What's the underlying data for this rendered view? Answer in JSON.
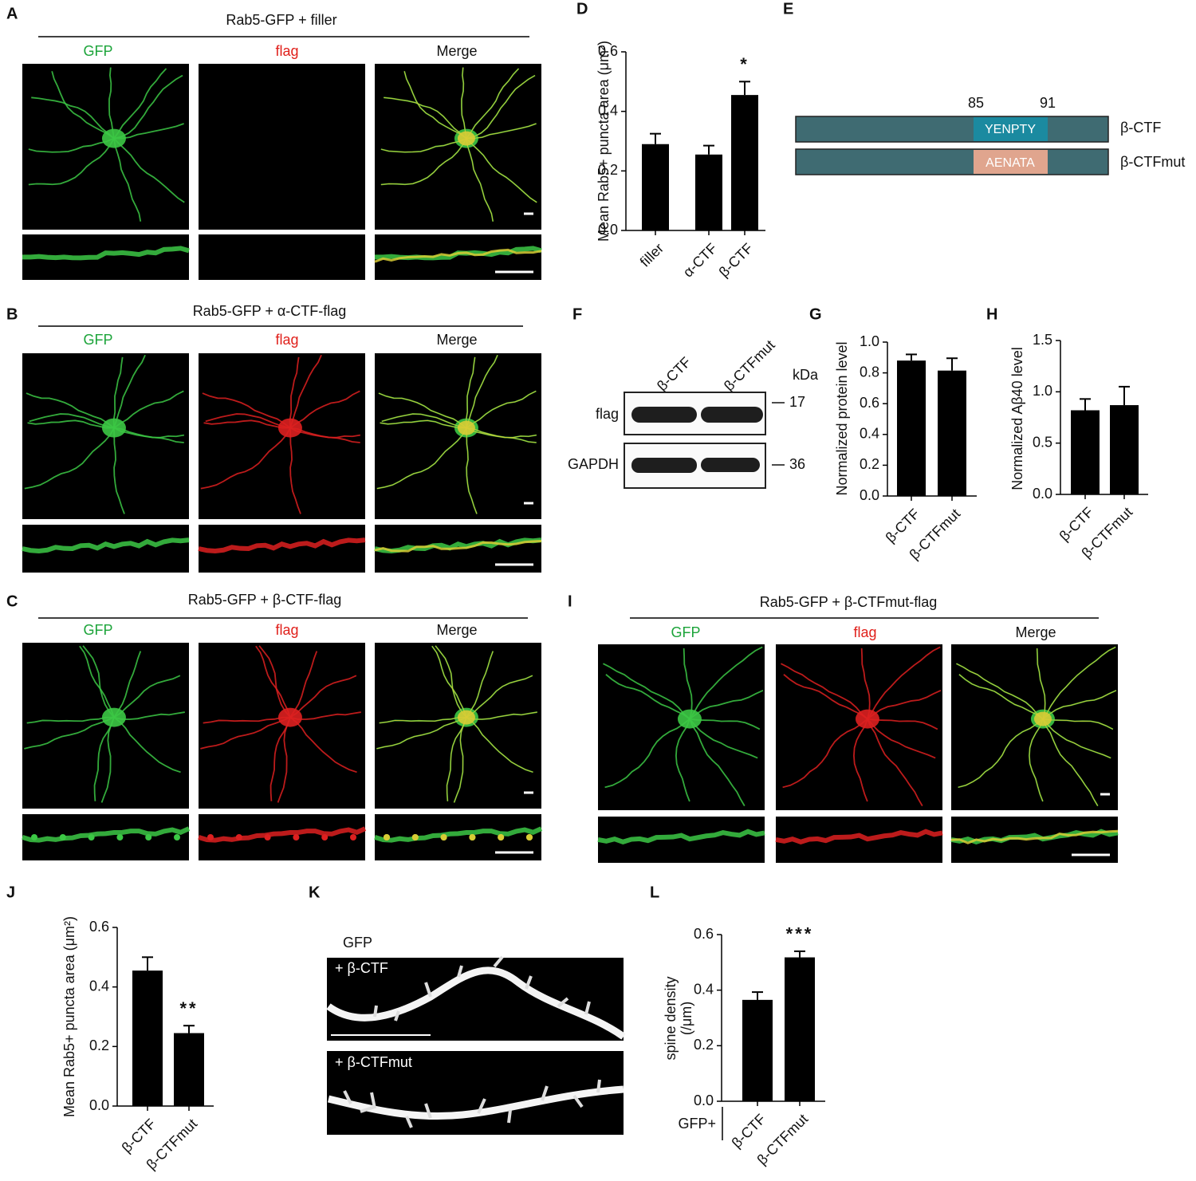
{
  "panels": {
    "A": {
      "label": "A",
      "title": "Rab5-GFP + filler",
      "channels": [
        "GFP",
        "flag",
        "Merge"
      ]
    },
    "B": {
      "label": "B",
      "title": "Rab5-GFP + α-CTF-flag",
      "channels": [
        "GFP",
        "flag",
        "Merge"
      ]
    },
    "C": {
      "label": "C",
      "title": "Rab5-GFP + β-CTF-flag",
      "channels": [
        "GFP",
        "flag",
        "Merge"
      ]
    },
    "I": {
      "label": "I",
      "title": "Rab5-GFP + β-CTFmut-flag",
      "channels": [
        "GFP",
        "flag",
        "Merge"
      ]
    }
  },
  "schematic": {
    "label": "E",
    "sites": [
      85,
      91
    ],
    "constructs": [
      {
        "name": "β-CTF",
        "motif": "YENPTY"
      },
      {
        "name": "β-CTFmut",
        "motif": "AENATA"
      }
    ]
  },
  "blot": {
    "label": "F",
    "lanes": [
      "β-CTF",
      "β-CTFmut"
    ],
    "unit": "kDa",
    "rows": [
      {
        "name": "flag",
        "marker": 17
      },
      {
        "name": "GAPDH",
        "marker": 36
      }
    ]
  },
  "spine_images": {
    "label": "K",
    "stain": "GFP",
    "conditions": [
      "+ β-CTF",
      "+ β-CTFmut"
    ]
  },
  "chart_data": [
    {
      "type": "bar",
      "panel": "D",
      "ylabel": "Mean Rab5+ puncta area (μm²)",
      "categories": [
        "filler",
        "α-CTF",
        "β-CTF"
      ],
      "values": [
        0.29,
        0.255,
        0.455
      ],
      "errors": [
        0.035,
        0.03,
        0.045
      ],
      "annotations": [
        null,
        null,
        "*"
      ],
      "color": "#000000",
      "ylim": [
        0,
        0.6
      ],
      "yticks": [
        {
          "value": 0,
          "label": "0.0"
        },
        0.2,
        0.4,
        0.6
      ]
    },
    {
      "type": "bar",
      "panel": "G",
      "ylabel": "Normalized protein level",
      "categories": [
        "β-CTF",
        "β-CTFmut"
      ],
      "values": [
        0.88,
        0.815
      ],
      "errors": [
        0.04,
        0.08
      ],
      "annotations": [
        null,
        null
      ],
      "color": "#000000",
      "ylim": [
        0,
        1
      ],
      "yticks": [
        {
          "value": 0,
          "label": "0.0"
        },
        0.2,
        0.4,
        0.6,
        0.8,
        {
          "value": 1,
          "label": "1.0"
        }
      ]
    },
    {
      "type": "bar",
      "panel": "H",
      "ylabel": "Normalized Aβ40 level",
      "categories": [
        "β-CTF",
        "β-CTFmut"
      ],
      "values": [
        0.82,
        0.87
      ],
      "errors": [
        0.11,
        0.18
      ],
      "annotations": [
        null,
        null
      ],
      "color": "#000000",
      "ylim": [
        0,
        1.5
      ],
      "yticks": [
        {
          "value": 0,
          "label": "0.0"
        },
        0.5,
        {
          "value": 1,
          "label": "1.0"
        },
        1.5
      ]
    },
    {
      "type": "bar",
      "panel": "J",
      "ylabel": "Mean Rab5+ puncta area (μm²)",
      "categories": [
        "β-CTF",
        "β-CTFmut"
      ],
      "values": [
        0.455,
        0.245
      ],
      "errors": [
        0.045,
        0.025
      ],
      "annotations": [
        null,
        "**"
      ],
      "color": "#000000",
      "ylim": [
        0,
        0.6
      ],
      "yticks": [
        {
          "value": 0,
          "label": "0.0"
        },
        0.2,
        0.4,
        0.6
      ]
    },
    {
      "type": "bar",
      "panel": "L",
      "ylabel": [
        "spine density",
        "(/μm)"
      ],
      "group_label": "GFP+",
      "categories": [
        "β-CTF",
        "β-CTFmut"
      ],
      "values": [
        0.365,
        0.518
      ],
      "errors": [
        0.028,
        0.022
      ],
      "annotations": [
        null,
        "***"
      ],
      "color": "#000000",
      "ylim": [
        0,
        0.6
      ],
      "yticks": [
        {
          "value": 0,
          "label": "0.0"
        },
        0.2,
        0.4,
        0.6
      ]
    }
  ]
}
